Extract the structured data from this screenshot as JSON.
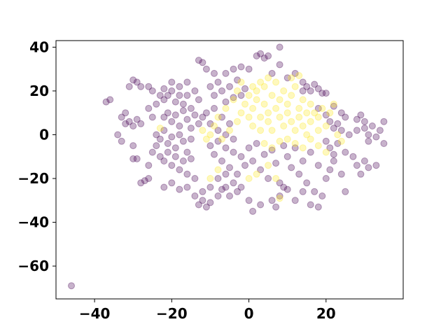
{
  "chart_data": {
    "type": "scatter",
    "title": "",
    "xlabel": "",
    "ylabel": "",
    "xlim": [
      -50,
      40
    ],
    "ylim": [
      -75,
      43
    ],
    "xticks": [
      -40,
      -20,
      0,
      20
    ],
    "yticks": [
      -60,
      -40,
      -20,
      0,
      20,
      40
    ],
    "xtick_labels": [
      "−40",
      "−20",
      "0",
      "20"
    ],
    "ytick_labels": [
      "−60",
      "−40",
      "−20",
      "0",
      "20",
      "40"
    ],
    "grid": false,
    "legend": "none",
    "marker_alpha": 0.3,
    "series": [
      {
        "color": "#440154",
        "points_note_cluster_centers": [
          [
            -18,
            10
          ],
          [
            -20,
            -8
          ],
          [
            -6,
            -10
          ],
          [
            3,
            -8
          ],
          [
            12,
            -10
          ],
          [
            22,
            8
          ],
          [
            -30,
            5
          ],
          [
            -12,
            30
          ]
        ],
        "points": [
          [
            -46,
            -69
          ],
          [
            -37,
            15
          ],
          [
            -36,
            16
          ],
          [
            -31,
            22
          ],
          [
            -30,
            25
          ],
          [
            -29,
            24
          ],
          [
            -28,
            22
          ],
          [
            -26,
            22
          ],
          [
            -25,
            20
          ],
          [
            -33,
            8
          ],
          [
            -32,
            5
          ],
          [
            -31,
            6
          ],
          [
            -30,
            4
          ],
          [
            -29,
            7
          ],
          [
            -28,
            5
          ],
          [
            -32,
            10
          ],
          [
            -34,
            0
          ],
          [
            -33,
            -3
          ],
          [
            -30,
            -5
          ],
          [
            -30,
            -11
          ],
          [
            -29,
            -11
          ],
          [
            -28,
            -22
          ],
          [
            -27,
            -21
          ],
          [
            -26,
            -20
          ],
          [
            -26,
            -14
          ],
          [
            -25,
            -8
          ],
          [
            -24,
            -5
          ],
          [
            -22,
            16
          ],
          [
            -21,
            18
          ],
          [
            -20,
            20
          ],
          [
            -19,
            15
          ],
          [
            -18,
            22
          ],
          [
            -17,
            14
          ],
          [
            -16,
            18
          ],
          [
            -15,
            12
          ],
          [
            -14,
            20
          ],
          [
            -13,
            16
          ],
          [
            -22,
            8
          ],
          [
            -21,
            10
          ],
          [
            -20,
            6
          ],
          [
            -19,
            9
          ],
          [
            -18,
            4
          ],
          [
            -17,
            11
          ],
          [
            -16,
            7
          ],
          [
            -15,
            3
          ],
          [
            -14,
            9
          ],
          [
            -13,
            5
          ],
          [
            -12,
            8
          ],
          [
            -24,
            0
          ],
          [
            -23,
            -2
          ],
          [
            -22,
            2
          ],
          [
            -21,
            -4
          ],
          [
            -20,
            -1
          ],
          [
            -19,
            -6
          ],
          [
            -18,
            0
          ],
          [
            -17,
            -3
          ],
          [
            -16,
            -8
          ],
          [
            -15,
            -2
          ],
          [
            -23,
            -10
          ],
          [
            -22,
            -12
          ],
          [
            -21,
            -8
          ],
          [
            -20,
            -14
          ],
          [
            -19,
            -10
          ],
          [
            -18,
            -16
          ],
          [
            -17,
            -12
          ],
          [
            -16,
            -18
          ],
          [
            -15,
            -11
          ],
          [
            -22,
            -24
          ],
          [
            -20,
            -22
          ],
          [
            -18,
            -25
          ],
          [
            -16,
            -24
          ],
          [
            -14,
            -20
          ],
          [
            -13,
            -32
          ],
          [
            -12,
            -30
          ],
          [
            -11,
            -33
          ],
          [
            -10,
            -31
          ],
          [
            -13,
            34
          ],
          [
            -12,
            33
          ],
          [
            -11,
            30
          ],
          [
            -9,
            28
          ],
          [
            -6,
            28
          ],
          [
            -4,
            30
          ],
          [
            -2,
            31
          ],
          [
            0,
            30
          ],
          [
            2,
            36
          ],
          [
            3,
            37
          ],
          [
            4,
            35
          ],
          [
            5,
            36
          ],
          [
            -10,
            22
          ],
          [
            -9,
            18
          ],
          [
            -8,
            24
          ],
          [
            -7,
            20
          ],
          [
            -6,
            15
          ],
          [
            -5,
            22
          ],
          [
            -4,
            17
          ],
          [
            -3,
            25
          ],
          [
            -2,
            18
          ],
          [
            -1,
            21
          ],
          [
            -11,
            10
          ],
          [
            -10,
            5
          ],
          [
            -9,
            12
          ],
          [
            -8,
            2
          ],
          [
            -7,
            8
          ],
          [
            -6,
            0
          ],
          [
            -5,
            5
          ],
          [
            -4,
            -2
          ],
          [
            -10,
            -5
          ],
          [
            -9,
            -9
          ],
          [
            -8,
            -3
          ],
          [
            -7,
            -12
          ],
          [
            -6,
            -6
          ],
          [
            -5,
            -15
          ],
          [
            -4,
            -8
          ],
          [
            -3,
            -18
          ],
          [
            -2,
            -10
          ],
          [
            -1,
            -14
          ],
          [
            0,
            -6
          ],
          [
            1,
            -12
          ],
          [
            2,
            -4
          ],
          [
            3,
            -16
          ],
          [
            4,
            -9
          ],
          [
            5,
            -20
          ],
          [
            6,
            -7
          ],
          [
            7,
            -13
          ],
          [
            8,
            -22
          ],
          [
            9,
            -5
          ],
          [
            -8,
            -20
          ],
          [
            -7,
            -25
          ],
          [
            -6,
            -18
          ],
          [
            -5,
            -28
          ],
          [
            -4,
            -22
          ],
          [
            -3,
            -26
          ],
          [
            -2,
            -24
          ],
          [
            0,
            -30
          ],
          [
            1,
            -35
          ],
          [
            3,
            -32
          ],
          [
            10,
            -10
          ],
          [
            11,
            -15
          ],
          [
            12,
            -6
          ],
          [
            13,
            -18
          ],
          [
            14,
            -12
          ],
          [
            15,
            -22
          ],
          [
            16,
            -8
          ],
          [
            17,
            -26
          ],
          [
            18,
            -14
          ],
          [
            19,
            -28
          ],
          [
            10,
            -25
          ],
          [
            12,
            -30
          ],
          [
            14,
            -26
          ],
          [
            16,
            -32
          ],
          [
            18,
            -33
          ],
          [
            20,
            -20
          ],
          [
            21,
            -16
          ],
          [
            22,
            -12
          ],
          [
            24,
            -18
          ],
          [
            25,
            -26
          ],
          [
            6,
            -30
          ],
          [
            7,
            -33
          ],
          [
            8,
            -28
          ],
          [
            9,
            -24
          ],
          [
            14,
            24
          ],
          [
            15,
            22
          ],
          [
            16,
            20
          ],
          [
            17,
            23
          ],
          [
            18,
            21
          ],
          [
            19,
            19
          ],
          [
            20,
            19
          ],
          [
            22,
            13
          ],
          [
            24,
            10
          ],
          [
            25,
            8
          ],
          [
            18,
            12
          ],
          [
            20,
            9
          ],
          [
            21,
            6
          ],
          [
            22,
            3
          ],
          [
            23,
            5
          ],
          [
            24,
            2
          ],
          [
            26,
            0
          ],
          [
            28,
            7
          ],
          [
            29,
            9
          ],
          [
            30,
            6
          ],
          [
            28,
            2
          ],
          [
            30,
            3
          ],
          [
            31,
            0
          ],
          [
            32,
            4
          ],
          [
            34,
            2
          ],
          [
            35,
            6
          ],
          [
            35,
            -4
          ],
          [
            33,
            -1
          ],
          [
            31,
            -3
          ],
          [
            20,
            -3
          ],
          [
            21,
            -6
          ],
          [
            22,
            -9
          ],
          [
            23,
            -4
          ],
          [
            25,
            -8
          ],
          [
            27,
            -10
          ],
          [
            28,
            -14
          ],
          [
            30,
            -12
          ],
          [
            31,
            -15
          ],
          [
            33,
            -14
          ],
          [
            29,
            -18
          ],
          [
            -14,
            -28
          ],
          [
            -12,
            -26
          ],
          [
            -10,
            -24
          ],
          [
            -8,
            -28
          ],
          [
            -6,
            -24
          ],
          [
            -26,
            12
          ],
          [
            -25,
            8
          ],
          [
            -24,
            14
          ],
          [
            -23,
            18
          ],
          [
            -22,
            21
          ],
          [
            -20,
            24
          ],
          [
            -18,
            18
          ],
          [
            -16,
            24
          ],
          [
            8,
            40
          ],
          [
            6,
            28
          ],
          [
            8,
            32
          ],
          [
            10,
            26
          ],
          [
            12,
            28
          ],
          [
            14,
            20
          ]
        ]
      },
      {
        "color": "#fde725",
        "points": [
          [
            -7,
            -2
          ],
          [
            -5,
            2
          ],
          [
            -3,
            6
          ],
          [
            -2,
            10
          ],
          [
            -1,
            14
          ],
          [
            0,
            18
          ],
          [
            0,
            8
          ],
          [
            1,
            12
          ],
          [
            1,
            4
          ],
          [
            2,
            16
          ],
          [
            2,
            20
          ],
          [
            3,
            8
          ],
          [
            3,
            2
          ],
          [
            4,
            14
          ],
          [
            4,
            22
          ],
          [
            5,
            6
          ],
          [
            5,
            10
          ],
          [
            6,
            18
          ],
          [
            6,
            2
          ],
          [
            7,
            12
          ],
          [
            7,
            24
          ],
          [
            8,
            8
          ],
          [
            8,
            16
          ],
          [
            9,
            4
          ],
          [
            9,
            20
          ],
          [
            10,
            10
          ],
          [
            10,
            14
          ],
          [
            11,
            6
          ],
          [
            11,
            18
          ],
          [
            12,
            22
          ],
          [
            12,
            2
          ],
          [
            13,
            12
          ],
          [
            13,
            8
          ],
          [
            14,
            16
          ],
          [
            14,
            4
          ],
          [
            15,
            10
          ],
          [
            15,
            0
          ],
          [
            16,
            14
          ],
          [
            16,
            6
          ],
          [
            17,
            10
          ],
          [
            18,
            2
          ],
          [
            18,
            8
          ],
          [
            19,
            12
          ],
          [
            20,
            4
          ],
          [
            21,
            10
          ],
          [
            22,
            14
          ],
          [
            23,
            0
          ],
          [
            24,
            -3
          ],
          [
            11,
            26
          ],
          [
            13,
            27
          ],
          [
            5,
            26
          ],
          [
            3,
            24
          ],
          [
            1,
            22
          ],
          [
            -2,
            24
          ],
          [
            -8,
            8
          ],
          [
            -9,
            4
          ],
          [
            -10,
            0
          ],
          [
            -11,
            -2
          ],
          [
            -12,
            2
          ],
          [
            -6,
            12
          ],
          [
            -4,
            16
          ],
          [
            -3,
            20
          ],
          [
            4,
            -4
          ],
          [
            6,
            -6
          ],
          [
            8,
            -3
          ],
          [
            10,
            -2
          ],
          [
            12,
            -4
          ],
          [
            14,
            -6
          ],
          [
            16,
            -2
          ],
          [
            5,
            -14
          ],
          [
            7,
            -20
          ],
          [
            8,
            -29
          ],
          [
            -23,
            3
          ],
          [
            -8,
            -16
          ],
          [
            -10,
            -20
          ],
          [
            0,
            -20
          ],
          [
            2,
            -18
          ],
          [
            18,
            -5
          ],
          [
            20,
            -8
          ]
        ]
      }
    ]
  }
}
